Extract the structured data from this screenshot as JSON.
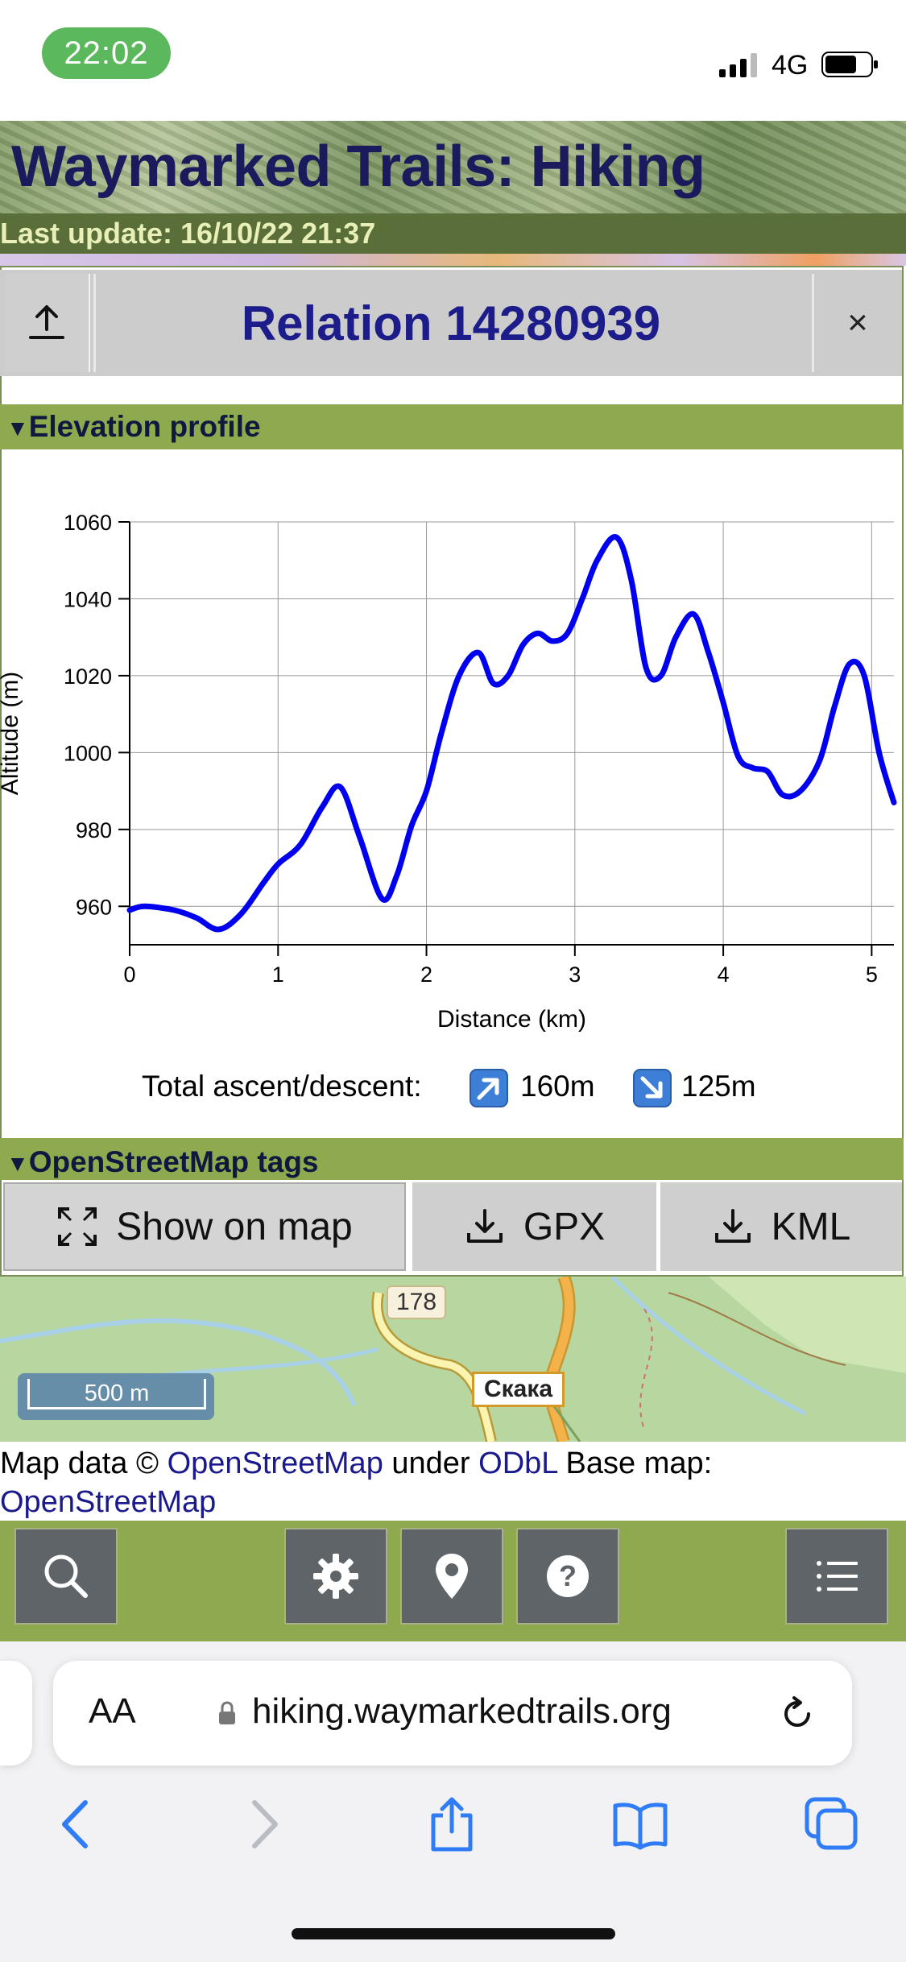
{
  "status_bar": {
    "time": "22:02",
    "network": "4G"
  },
  "header": {
    "site_title": "Waymarked Trails: Hiking",
    "last_update": "Last update: 16/10/22 21:37"
  },
  "panel": {
    "title": "Relation 14280939",
    "close_symbol": "×",
    "elevation_section": "Elevation profile",
    "osm_section": "OpenStreetMap tags",
    "ascent_label": "Total ascent/descent:",
    "ascent": "160m",
    "descent": "125m"
  },
  "chart_data": {
    "type": "line",
    "xlabel": "Distance (km)",
    "ylabel": "Altitude (m)",
    "xlim": [
      0,
      5.15
    ],
    "ylim": [
      950,
      1060
    ],
    "x_ticks": [
      0,
      1,
      2,
      3,
      4,
      5
    ],
    "y_ticks": [
      960,
      980,
      1000,
      1020,
      1040,
      1060
    ],
    "grid": true,
    "line_color": "#0000ee",
    "series": [
      {
        "x": [
          0,
          0.1,
          0.3,
          0.45,
          0.6,
          0.75,
          0.9,
          1.0,
          1.15,
          1.3,
          1.42,
          1.55,
          1.7,
          1.8,
          1.9,
          2.0,
          2.1,
          2.22,
          2.35,
          2.45,
          2.55,
          2.65,
          2.75,
          2.85,
          2.95,
          3.05,
          3.15,
          3.28,
          3.38,
          3.48,
          3.58,
          3.68,
          3.8,
          3.9,
          4.0,
          4.1,
          4.2,
          4.3,
          4.4,
          4.52,
          4.65,
          4.75,
          4.85,
          4.95,
          5.05,
          5.15
        ],
        "y": [
          959,
          960,
          959,
          957,
          954,
          958,
          966,
          971,
          976,
          986,
          991,
          978,
          962,
          968,
          981,
          990,
          1005,
          1020,
          1026,
          1018,
          1020,
          1028,
          1031,
          1029,
          1031,
          1040,
          1050,
          1056,
          1045,
          1022,
          1020,
          1030,
          1036,
          1026,
          1013,
          999,
          996,
          995,
          989,
          990,
          998,
          1012,
          1023,
          1020,
          1000,
          987
        ]
      }
    ]
  },
  "actions": {
    "show_on_map": "Show on map",
    "gpx": "GPX",
    "kml": "KML"
  },
  "map": {
    "road_ref": "178",
    "town": "Скака",
    "scale": "500 m"
  },
  "attribution": {
    "prefix": "Map data © ",
    "osm_link": "OpenStreetMap",
    "under": " under ",
    "odbl_link": "ODbL",
    "base": " Base map: ",
    "base_link": "OpenStreetMap"
  },
  "browser": {
    "aa": "AA",
    "url": "hiking.waymarkedtrails.org"
  }
}
